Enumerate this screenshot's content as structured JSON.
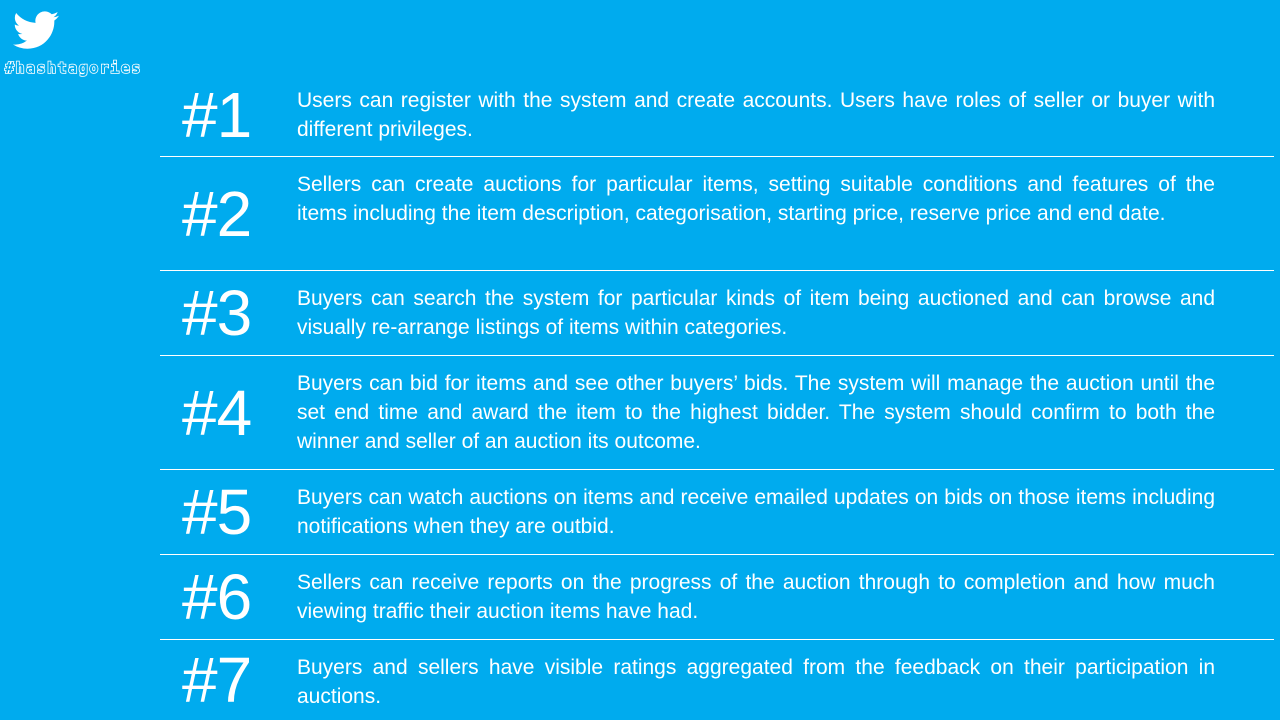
{
  "brand": {
    "name": "#hashtagories",
    "icon": "twitter-bird-icon",
    "background_color": "#00ABEE",
    "text_color": "#FFFFFF"
  },
  "requirements": [
    {
      "number": "#1",
      "text": "Users can register with the system and create accounts. Users have roles of seller or buyer with different privileges."
    },
    {
      "number": "#2",
      "text": "Sellers can create auctions for particular items, setting suitable conditions and features of the items including the item description, categorisation, starting price, reserve price and end date."
    },
    {
      "number": "#3",
      "text": "Buyers can search the system for particular kinds of item being auctioned and can browse and visually re-arrange listings of items within categories."
    },
    {
      "number": "#4",
      "text": "Buyers can bid for items and see other buyers’ bids. The system will manage the auction until the set end time and award the item to the highest bidder. The system should confirm to both the winner and seller of an auction its outcome."
    },
    {
      "number": "#5",
      "text": "Buyers can watch auctions on items and receive emailed updates on bids on those items including notifications when they are outbid."
    },
    {
      "number": "#6",
      "text": "Sellers can receive reports on the progress of the auction through to completion and how much viewing traffic their auction items have had."
    },
    {
      "number": "#7",
      "text": "Buyers and sellers have visible ratings aggregated from the feedback on their participation in auctions."
    }
  ]
}
